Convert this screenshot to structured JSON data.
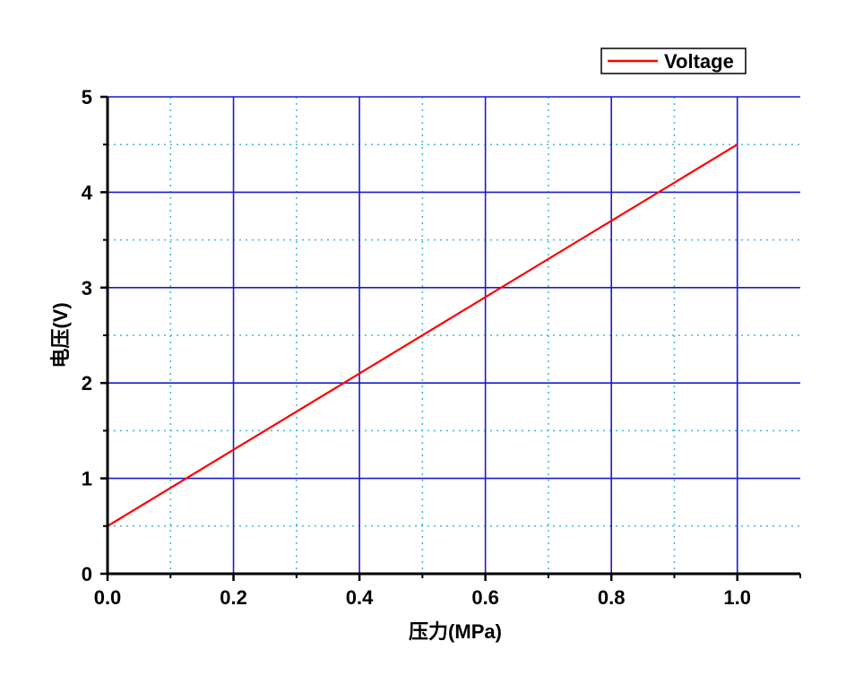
{
  "chart_data": {
    "type": "line",
    "xlabel": "压力(MPa)",
    "ylabel": "电压(V)",
    "xlim": [
      0,
      1.1
    ],
    "ylim": [
      0,
      5
    ],
    "x_ticks": [
      0.0,
      0.2,
      0.4,
      0.6,
      0.8,
      1.0
    ],
    "x_tick_labels": [
      "0.0",
      "0.2",
      "0.4",
      "0.6",
      "0.8",
      "1.0"
    ],
    "y_ticks": [
      0,
      1,
      2,
      3,
      4,
      5
    ],
    "y_tick_labels": [
      "0",
      "1",
      "2",
      "3",
      "4",
      "5"
    ],
    "x_minor_grid": [
      0.1,
      0.3,
      0.5,
      0.7,
      0.9
    ],
    "y_minor_grid": [
      0.5,
      1.5,
      2.5,
      3.5,
      4.5
    ],
    "grid": true,
    "major_grid_color": "#1a1acc",
    "minor_grid_color": "#40b8d8",
    "legend_position": "top-right",
    "series": [
      {
        "name": "Voltage",
        "color": "#ff0000",
        "x": [
          0.0,
          0.2,
          0.4,
          0.6,
          0.8,
          1.0
        ],
        "y": [
          0.5,
          1.3,
          2.1,
          2.9,
          3.7,
          4.5
        ]
      }
    ]
  }
}
